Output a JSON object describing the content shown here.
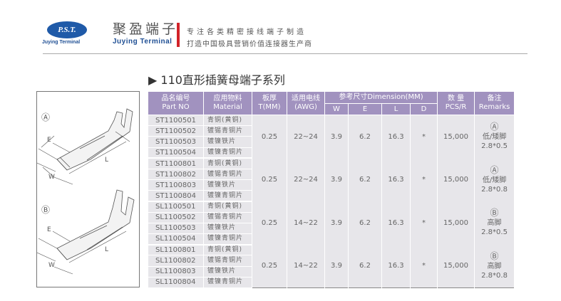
{
  "header": {
    "logo_text": "P.S.T.",
    "logo_sub": "Juying Terminal",
    "brand_cn": "聚盈端子",
    "brand_en": "Juying Terminal",
    "slogan1": "专注各类精密接线端子制造",
    "slogan2": "打造中国极具营销价值连接器生产商",
    "accent": "#d2232a",
    "brand_color": "#1f5aa8"
  },
  "title": "▶ 110直形插簧母端子系列",
  "diagram": {
    "labels": {
      "a": "Ⓐ",
      "b": "Ⓑ",
      "e": "E",
      "w": "W",
      "l": "L"
    }
  },
  "table": {
    "headers": {
      "part_cn": "品名编号",
      "part_en": "Part NO",
      "mat_cn": "应用物料",
      "mat_en": "Material",
      "t_cn": "板厚",
      "t_en": "T(MM)",
      "awg_cn": "适用电线",
      "awg_en": "(AWG)",
      "dim": "参考尺寸Dimension(MM)",
      "w": "W",
      "e": "E",
      "l": "L",
      "d": "D",
      "qty_cn": "数 量",
      "qty_en": "PCS/R",
      "rem_cn": "备注",
      "rem_en": "Remarks"
    },
    "header_color": "#a192bf",
    "groups": [
      {
        "parts": [
          "ST1100501",
          "ST1100502",
          "ST1100503",
          "ST1100504"
        ],
        "materials": [
          "青铜(黄铜)",
          "镀锡青铜片",
          "镀镍铁片",
          "镀镍青铜片"
        ],
        "t": "0.25",
        "awg": "22~24",
        "w": "3.9",
        "e": "6.2",
        "l": "16.3",
        "d": "*",
        "qty": "15,000",
        "rem_mark": "Ⓐ",
        "rem_type": "低/矮脚",
        "rem_size": "2.8*0.5"
      },
      {
        "parts": [
          "ST1100801",
          "ST1100802",
          "ST1100803",
          "ST1100804"
        ],
        "materials": [
          "青铜(黄铜)",
          "镀锡青铜片",
          "镀镍铁片",
          "镀镍青铜片"
        ],
        "t": "0.25",
        "awg": "22~24",
        "w": "3.9",
        "e": "6.2",
        "l": "16.3",
        "d": "*",
        "qty": "15,000",
        "rem_mark": "Ⓐ",
        "rem_type": "低/矮脚",
        "rem_size": "2.8*0.8"
      },
      {
        "parts": [
          "SL1100501",
          "SL1100502",
          "SL1100503",
          "SL1100504"
        ],
        "materials": [
          "青铜(黄铜)",
          "镀锡青铜片",
          "镀镍铁片",
          "镀镍青铜片"
        ],
        "t": "0.25",
        "awg": "14~22",
        "w": "3.9",
        "e": "6.2",
        "l": "16.3",
        "d": "*",
        "qty": "15,000",
        "rem_mark": "Ⓑ",
        "rem_type": "高脚",
        "rem_size": "2.8*0.5"
      },
      {
        "parts": [
          "SL1100801",
          "SL1100802",
          "SL1100803",
          "SL1100804"
        ],
        "materials": [
          "青铜(黄铜)",
          "镀锡青铜片",
          "镀镍铁片",
          "镀镍青铜片"
        ],
        "t": "0.25",
        "awg": "14~22",
        "w": "3.9",
        "e": "6.2",
        "l": "16.3",
        "d": "*",
        "qty": "15,000",
        "rem_mark": "Ⓑ",
        "rem_type": "高脚",
        "rem_size": "2.8*0.8"
      }
    ]
  }
}
